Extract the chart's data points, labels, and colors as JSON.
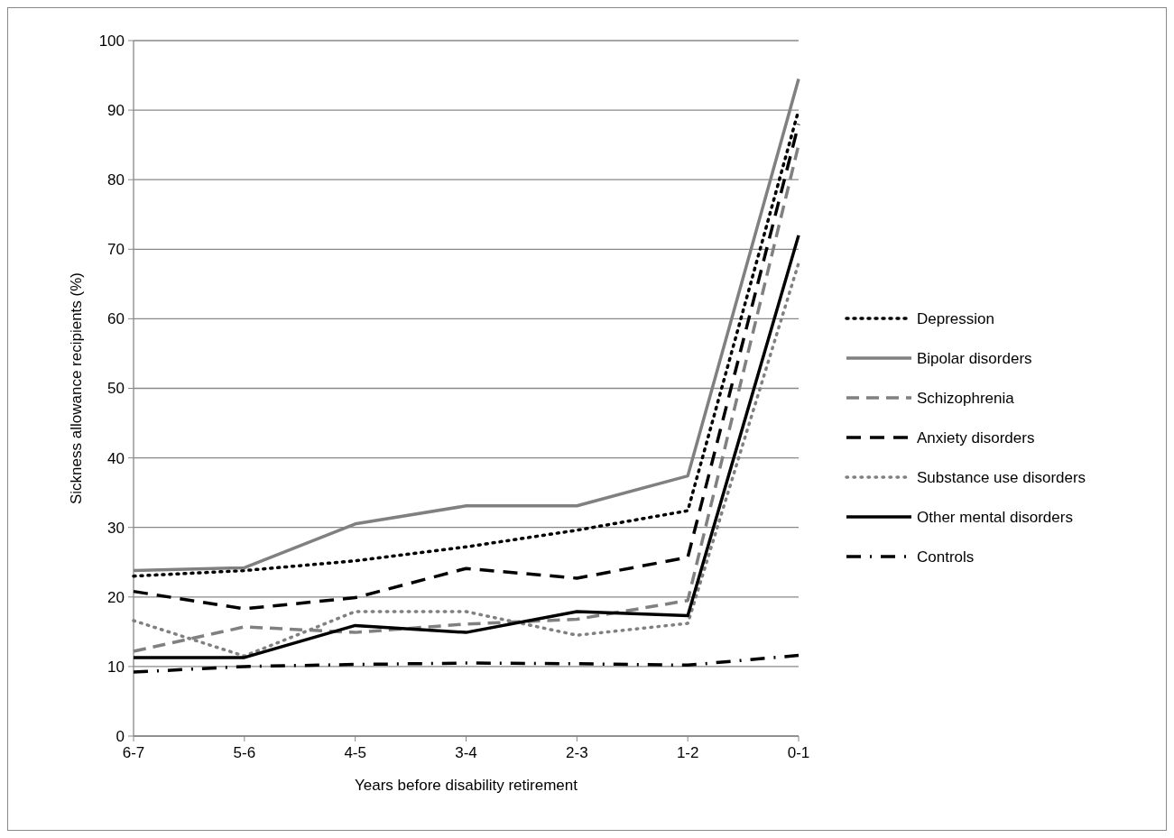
{
  "chart_data": {
    "type": "line",
    "xlabel": "Years before disability retirement",
    "ylabel": "Sickness allowance recipients  (%)",
    "categories": [
      "6-7",
      "5-6",
      "4-5",
      "3-4",
      "2-3",
      "1-2",
      "0-1"
    ],
    "ylim": [
      0,
      100
    ],
    "yticks": [
      0,
      10,
      20,
      30,
      40,
      50,
      60,
      70,
      80,
      90,
      100
    ],
    "grid": "y",
    "legend": "right",
    "marker": "none",
    "series": [
      {
        "name": "Depression",
        "color": "#000000",
        "line_style": "dotted",
        "values": [
          23,
          23.8,
          25.2,
          27.2,
          29.6,
          32.4,
          90
        ]
      },
      {
        "name": "Bipolar disorders",
        "color": "#808080",
        "line_style": "solid",
        "values": [
          23.8,
          24.2,
          30.5,
          33.1,
          33.1,
          37.4,
          94.5
        ]
      },
      {
        "name": "Schizophrenia",
        "color": "#808080",
        "line_style": "dashed",
        "values": [
          12.2,
          15.7,
          14.9,
          16.1,
          16.8,
          19.5,
          85
        ]
      },
      {
        "name": "Anxiety disorders",
        "color": "#000000",
        "line_style": "dashed",
        "values": [
          20.8,
          18.3,
          19.9,
          24.1,
          22.7,
          25.7,
          88
        ]
      },
      {
        "name": "Substance use disorders",
        "color": "#808080",
        "line_style": "dotted",
        "values": [
          16.6,
          11.5,
          17.9,
          17.9,
          14.5,
          16.2,
          68
        ]
      },
      {
        "name": "Other mental disorders",
        "color": "#000000",
        "line_style": "solid",
        "values": [
          11.3,
          11.3,
          15.9,
          14.9,
          17.9,
          17.3,
          72
        ]
      },
      {
        "name": "Controls",
        "color": "#000000",
        "line_style": "dashdot",
        "values": [
          9.2,
          10,
          10.3,
          10.5,
          10.4,
          10.2,
          11.6
        ]
      }
    ]
  }
}
